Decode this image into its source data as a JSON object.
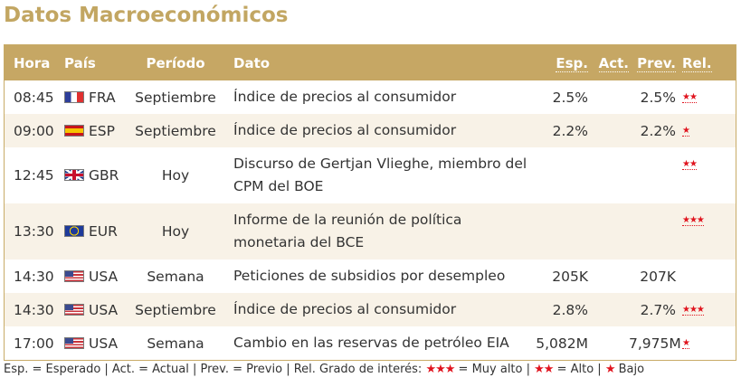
{
  "title": "Datos Macroeconómicos",
  "headers": {
    "hora": "Hora",
    "pais": "País",
    "periodo": "Período",
    "dato": "Dato",
    "esp": "Esp.",
    "act": "Act.",
    "prev": "Prev.",
    "rel": "Rel."
  },
  "rows": [
    {
      "hora": "08:45",
      "flag": "flag-france",
      "pais": "FRA",
      "periodo": "Septiembre",
      "dato": "Índice de precios al consumidor",
      "esp": "2.5%",
      "act": "",
      "prev": "2.5%",
      "rel": "★★",
      "rel_level": 2
    },
    {
      "hora": "09:00",
      "flag": "flag-spain",
      "pais": "ESP",
      "periodo": "Septiembre",
      "dato": "Índice de precios al consumidor",
      "esp": "2.2%",
      "act": "",
      "prev": "2.2%",
      "rel": "★",
      "rel_level": 1
    },
    {
      "hora": "12:45",
      "flag": "flag-uk",
      "pais": "GBR",
      "periodo": "Hoy",
      "dato": "Discurso de Gertjan Vlieghe, miembro del CPM del BOE",
      "esp": "",
      "act": "",
      "prev": "",
      "rel": "★★",
      "rel_level": 2
    },
    {
      "hora": "13:30",
      "flag": "flag-eu",
      "pais": "EUR",
      "periodo": "Hoy",
      "dato": "Informe de la reunión de política monetaria del BCE",
      "esp": "",
      "act": "",
      "prev": "",
      "rel": "★★★",
      "rel_level": 3
    },
    {
      "hora": "14:30",
      "flag": "flag-usa",
      "pais": "USA",
      "periodo": "Semana",
      "dato": "Peticiones de subsidios por desempleo",
      "esp": "205K",
      "act": "",
      "prev": "207K",
      "rel": "",
      "rel_level": 0
    },
    {
      "hora": "14:30",
      "flag": "flag-usa",
      "pais": "USA",
      "periodo": "Septiembre",
      "dato": "Índice de precios al consumidor",
      "esp": "2.8%",
      "act": "",
      "prev": "2.7%",
      "rel": "★★★",
      "rel_level": 3
    },
    {
      "hora": "17:00",
      "flag": "flag-usa",
      "pais": "USA",
      "periodo": "Semana",
      "dato": "Cambio en las reservas de petróleo EIA",
      "esp": "5,082M",
      "act": "",
      "prev": "7,975M",
      "rel": "★",
      "rel_level": 1
    }
  ],
  "legend": {
    "part1": "Esp. = Esperado | Act. = Actual | Prev. = Previo | Rel. Grado de interés:",
    "stars3": "★★★",
    "part2": "= Muy alto |",
    "stars2": "★★",
    "part3": "= Alto |",
    "stars1": "★",
    "part4": "Bajo"
  },
  "colors": {
    "accent": "#c6a764",
    "title": "#c2a662",
    "row_alt": "#f8f2e7",
    "star": "#e0141e"
  }
}
